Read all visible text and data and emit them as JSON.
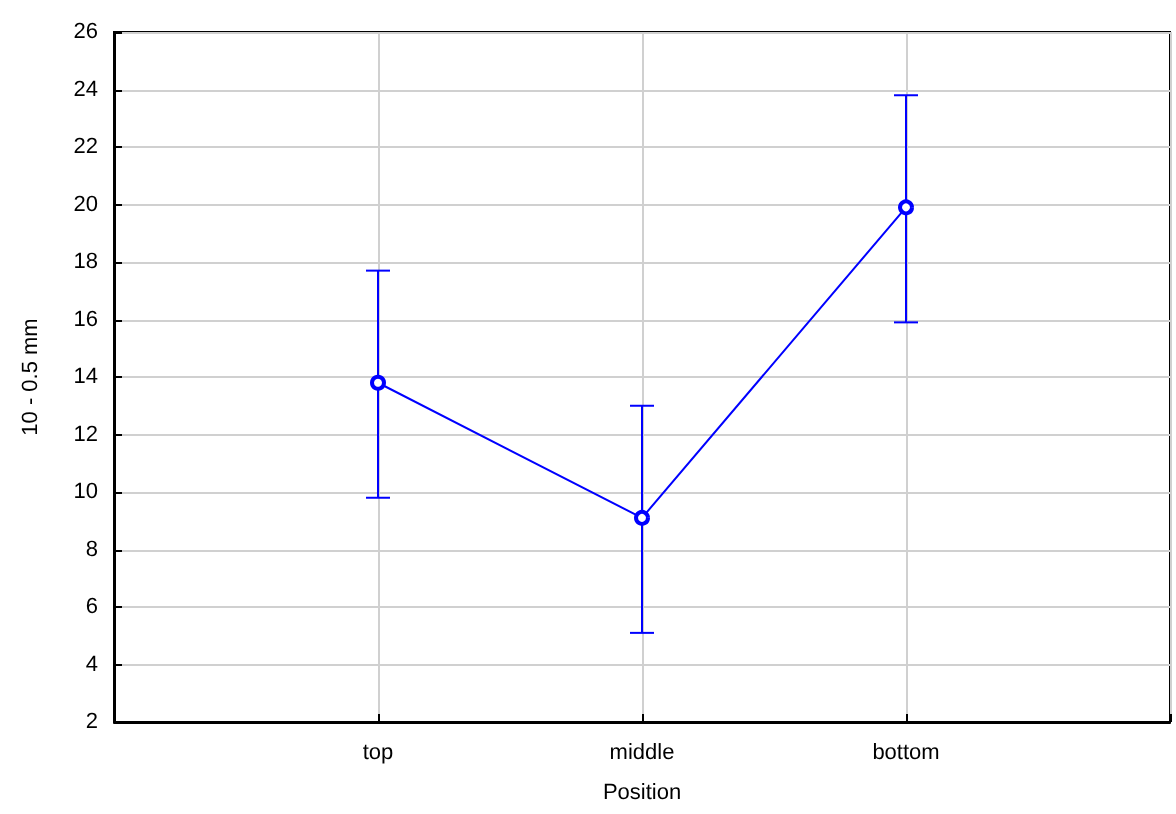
{
  "chart_data": {
    "type": "line",
    "xlabel": "Position",
    "ylabel": "10 - 0.5 mm",
    "categories": [
      null,
      "top",
      "middle",
      "bottom",
      null
    ],
    "series": [
      {
        "color": "#0000ff",
        "values": [
          null,
          13.8,
          9.1,
          19.9,
          null
        ],
        "errors": [
          null,
          [
            9.8,
            17.7
          ],
          [
            5.1,
            13.0
          ],
          [
            15.9,
            23.8
          ],
          null
        ]
      }
    ],
    "ylim": [
      2,
      26
    ],
    "yticks": [
      2,
      4,
      6,
      8,
      10,
      12,
      14,
      16,
      18,
      20,
      22,
      24,
      26
    ],
    "grid": true,
    "marker": "circle",
    "line_style": "solid"
  }
}
